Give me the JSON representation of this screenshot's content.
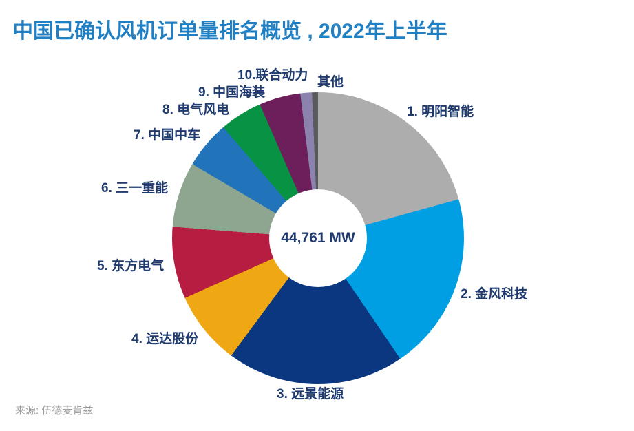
{
  "chart_data": {
    "type": "pie",
    "subtype": "donut",
    "title": "中国已确认风机订单量排名概览 , 2022年上半年",
    "center_label": "44,761 MW",
    "total_mw": 44761,
    "unit": "MW",
    "source": "来源: 伍德麦肯兹",
    "start_angle_deg": 0,
    "direction": "clockwise",
    "legend_position": "labels-around-slices",
    "slices": [
      {
        "rank": 1,
        "label": "1. 明阳智能",
        "company": "明阳智能",
        "share_pct_est": 20.7,
        "angle_deg": 74.5,
        "color": "#ADADAE"
      },
      {
        "rank": 2,
        "label": "2. 金风科技",
        "company": "金风科技",
        "share_pct_est": 19.8,
        "angle_deg": 71.2,
        "color": "#009FE3"
      },
      {
        "rank": 3,
        "label": "3. 远景能源",
        "company": "远景能源",
        "share_pct_est": 19.7,
        "angle_deg": 70.8,
        "color": "#0B3680"
      },
      {
        "rank": 4,
        "label": "4. 运达股份",
        "company": "运达股份",
        "share_pct_est": 8.1,
        "angle_deg": 29.3,
        "color": "#EFA713"
      },
      {
        "rank": 5,
        "label": "5. 东方电气",
        "company": "东方电气",
        "share_pct_est": 8.0,
        "angle_deg": 28.7,
        "color": "#B71C41"
      },
      {
        "rank": 6,
        "label": "6. 三一重能",
        "company": "三一重能",
        "share_pct_est": 7.2,
        "angle_deg": 26.0,
        "color": "#8EA690"
      },
      {
        "rank": 7,
        "label": "7. 中国中车",
        "company": "中国中车",
        "share_pct_est": 5.3,
        "angle_deg": 19.0,
        "color": "#2174BA"
      },
      {
        "rank": 8,
        "label": "8. 电气风电",
        "company": "电气风电",
        "share_pct_est": 4.7,
        "angle_deg": 17.0,
        "color": "#089344"
      },
      {
        "rank": 9,
        "label": "9. 中国海装",
        "company": "中国海装",
        "share_pct_est": 4.6,
        "angle_deg": 16.5,
        "color": "#6D1F5B"
      },
      {
        "rank": 10,
        "label": "10.联合动力",
        "company": "联合动力",
        "share_pct_est": 1.3,
        "angle_deg": 4.6,
        "color": "#8B83AE"
      },
      {
        "rank": 11,
        "label": "其他",
        "company": "其他",
        "share_pct_est": 0.7,
        "angle_deg": 2.4,
        "color": "#58595B"
      }
    ],
    "colors": {
      "title": "#2180C3",
      "slice_labels": "#1E3A6E",
      "center_label": "#1E3A6E",
      "source": "#9B9C9E",
      "background": "#FFFFFF"
    }
  }
}
